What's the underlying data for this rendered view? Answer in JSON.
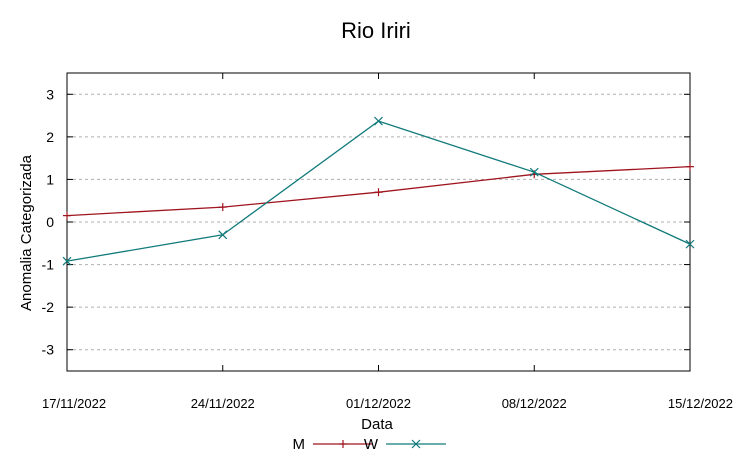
{
  "chart_data": {
    "type": "line",
    "title": "Rio Iriri",
    "xlabel": "Data",
    "ylabel": "Anomalia Categorizada",
    "categories": [
      "17/11/2022",
      "24/11/2022",
      "01/12/2022",
      "08/12/2022",
      "15/12/2022"
    ],
    "ylim": [
      -3.5,
      3.5
    ],
    "yticks": [
      "3",
      "2",
      "1",
      "0",
      "-1",
      "-2",
      "-3"
    ],
    "grid": "horizontal dashed",
    "legend_position": "bottom",
    "series": [
      {
        "name": "M",
        "color": "#a0141e",
        "marker": "plus",
        "values": [
          0.15,
          0.35,
          0.7,
          1.12,
          1.3
        ]
      },
      {
        "name": "W",
        "color": "#117a7a",
        "marker": "cross",
        "values": [
          -0.92,
          -0.3,
          2.37,
          1.17,
          -0.52
        ]
      }
    ]
  }
}
